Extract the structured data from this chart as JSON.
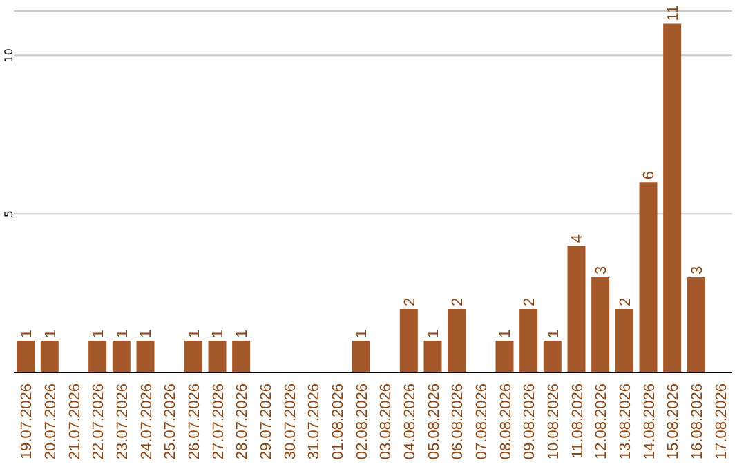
{
  "chart_data": {
    "type": "bar",
    "categories": [
      "19.07.2026",
      "20.07.2026",
      "21.07.2026",
      "22.07.2026",
      "23.07.2026",
      "24.07.2026",
      "25.07.2026",
      "26.07.2026",
      "27.07.2026",
      "28.07.2026",
      "29.07.2026",
      "30.07.2026",
      "31.07.2026",
      "01.08.2026",
      "02.08.2026",
      "03.08.2026",
      "04.08.2026",
      "05.08.2026",
      "06.08.2026",
      "07.08.2026",
      "08.08.2026",
      "09.08.2026",
      "10.08.2026",
      "11.08.2026",
      "12.08.2026",
      "13.08.2026",
      "14.08.2026",
      "15.08.2026",
      "16.08.2026",
      "17.08.2026"
    ],
    "values": [
      1,
      1,
      0,
      1,
      1,
      1,
      0,
      1,
      1,
      1,
      0,
      0,
      0,
      0,
      1,
      0,
      2,
      1,
      2,
      0,
      1,
      2,
      1,
      4,
      3,
      2,
      6,
      11,
      3,
      0
    ],
    "value_labels": [
      "1",
      "1",
      null,
      "1",
      "1",
      "1",
      null,
      "1",
      "1",
      "1",
      null,
      null,
      null,
      null,
      "1",
      null,
      "2",
      "1",
      "2",
      null,
      "1",
      "2",
      "1",
      "4",
      "3",
      "2",
      "6",
      "11",
      "3",
      null
    ],
    "color": "#a5582a",
    "ylim": [
      0,
      11.4
    ],
    "yticks": [
      {
        "value": 0,
        "label": null
      },
      5,
      10
    ],
    "grid": "y"
  }
}
